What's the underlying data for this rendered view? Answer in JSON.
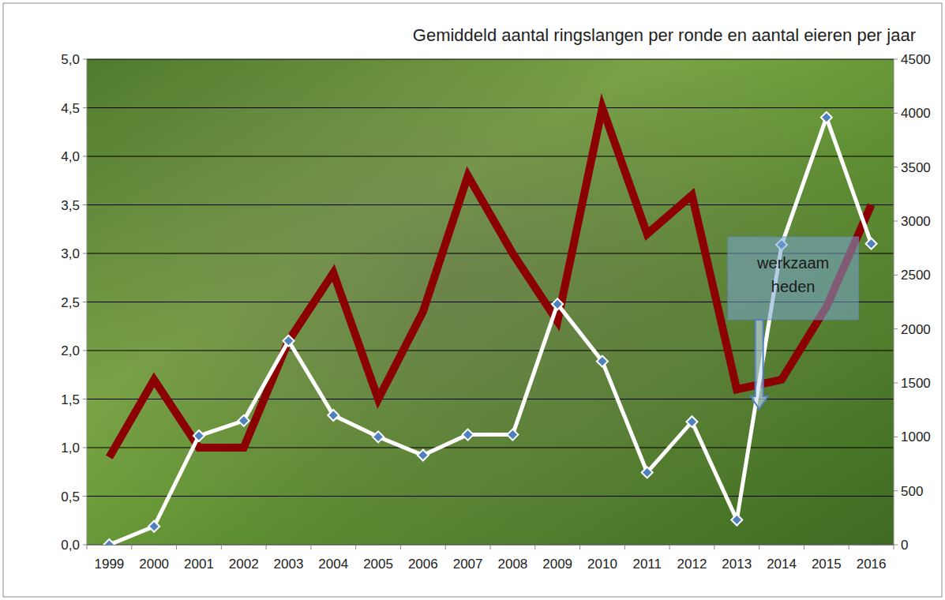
{
  "chart_data": {
    "type": "line",
    "title": "Gemiddeld aantal ringslangen per ronde en aantal eieren per jaar",
    "categories": [
      "1999",
      "2000",
      "2001",
      "2002",
      "2003",
      "2004",
      "2005",
      "2006",
      "2007",
      "2008",
      "2009",
      "2010",
      "2011",
      "2012",
      "2013",
      "2014",
      "2015",
      "2016"
    ],
    "series": [
      {
        "color": "#8b0000",
        "marker": "none",
        "line_style": "solid",
        "values": [
          0.9,
          1.7,
          1.0,
          1.0,
          2.1,
          2.8,
          1.5,
          2.4,
          3.8,
          3.0,
          2.3,
          4.5,
          3.2,
          3.6,
          1.6,
          1.7,
          2.45,
          3.5
        ]
      },
      {
        "color": "#ffffff",
        "marker": "diamond",
        "line_style": "solid",
        "axis": "y2",
        "values": [
          0,
          170,
          1010,
          1150,
          1890,
          1200,
          1000,
          830,
          1020,
          1020,
          2230,
          1700,
          670,
          1140,
          230,
          2780,
          3960,
          2790
        ]
      }
    ],
    "ylim": [
      0,
      5
    ],
    "yticks": [
      {
        "value": 0,
        "label": "0,0"
      },
      {
        "value": 0.5,
        "label": "0,5"
      },
      {
        "value": 1,
        "label": "1,0"
      },
      {
        "value": 1.5,
        "label": "1,5"
      },
      {
        "value": 2,
        "label": "2,0"
      },
      {
        "value": 2.5,
        "label": "2,5"
      },
      {
        "value": 3,
        "label": "3,0"
      },
      {
        "value": 3.5,
        "label": "3,5"
      },
      {
        "value": 4,
        "label": "4,0"
      },
      {
        "value": 4.5,
        "label": "4,5"
      },
      {
        "value": 5,
        "label": "5,0"
      }
    ],
    "y2lim": [
      0,
      4500
    ],
    "y2ticks": [
      0,
      500,
      1000,
      1500,
      2000,
      2500,
      3000,
      3500,
      4000,
      4500
    ],
    "grid": true,
    "annotations": [
      {
        "text": "werkzaam heden",
        "category": "2014"
      }
    ]
  }
}
